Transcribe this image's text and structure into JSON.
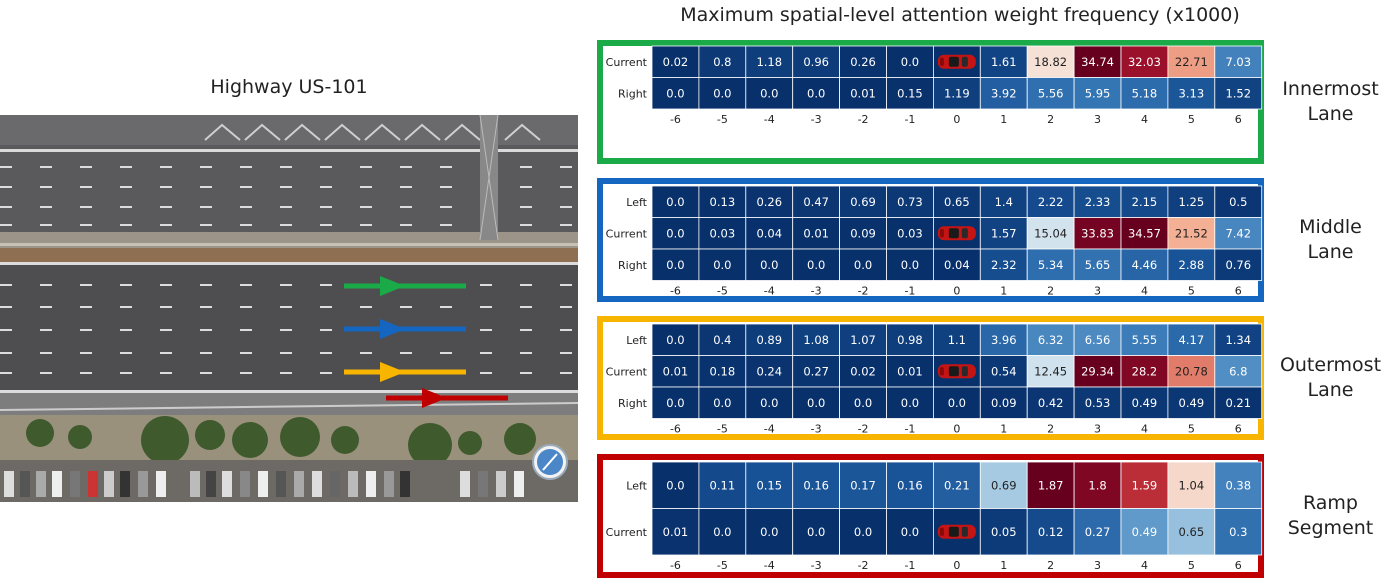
{
  "main_title": "Maximum spatial-level attention weight frequency (x1000)",
  "highway_title": "Highway US-101",
  "colors": {
    "innermost": "#1aaa47",
    "middle": "#1566c0",
    "outermost": "#f7b500",
    "ramp": "#c00000"
  },
  "lane_labels": {
    "innermost": [
      "Innermost",
      "Lane"
    ],
    "middle": [
      "Middle",
      "Lane"
    ],
    "outermost": [
      "Outermost",
      "Lane"
    ],
    "ramp": [
      "Ramp",
      "Segment"
    ]
  },
  "chart_data": [
    {
      "type": "heatmap",
      "panel": "innermost",
      "x_categories": [
        "-6",
        "-5",
        "-4",
        "-3",
        "-2",
        "-1",
        "0",
        "1",
        "2",
        "3",
        "4",
        "5",
        "6"
      ],
      "rows": [
        "Current",
        "Right"
      ],
      "values": [
        [
          0.02,
          0.8,
          1.18,
          0.96,
          0.26,
          0.0,
          null,
          1.61,
          18.82,
          34.74,
          32.03,
          22.71,
          7.03
        ],
        [
          0.0,
          0.0,
          0.0,
          0.0,
          0.01,
          0.15,
          1.19,
          3.92,
          5.56,
          5.95,
          5.18,
          3.13,
          1.52
        ]
      ],
      "labels": [
        [
          "0.02",
          "0.8",
          "1.18",
          "0.96",
          "0.26",
          "0.0",
          "",
          "1.61",
          "18.82",
          "34.74",
          "32.03",
          "22.71",
          "7.03"
        ],
        [
          "0.0",
          "0.0",
          "0.0",
          "0.0",
          "0.01",
          "0.15",
          "1.19",
          "3.92",
          "5.56",
          "5.95",
          "5.18",
          "3.13",
          "1.52"
        ]
      ],
      "vmax": 34.74
    },
    {
      "type": "heatmap",
      "panel": "middle",
      "x_categories": [
        "-6",
        "-5",
        "-4",
        "-3",
        "-2",
        "-1",
        "0",
        "1",
        "2",
        "3",
        "4",
        "5",
        "6"
      ],
      "rows": [
        "Left",
        "Current",
        "Right"
      ],
      "values": [
        [
          0.0,
          0.13,
          0.26,
          0.47,
          0.69,
          0.73,
          0.65,
          1.4,
          2.22,
          2.33,
          2.15,
          1.25,
          0.5
        ],
        [
          0.0,
          0.03,
          0.04,
          0.01,
          0.09,
          0.03,
          null,
          1.57,
          15.04,
          33.83,
          34.57,
          21.52,
          7.42
        ],
        [
          0.0,
          0.0,
          0.0,
          0.0,
          0.0,
          0.0,
          0.04,
          2.32,
          5.34,
          5.65,
          4.46,
          2.88,
          0.76
        ]
      ],
      "labels": [
        [
          "0.0",
          "0.13",
          "0.26",
          "0.47",
          "0.69",
          "0.73",
          "0.65",
          "1.4",
          "2.22",
          "2.33",
          "2.15",
          "1.25",
          "0.5"
        ],
        [
          "0.0",
          "0.03",
          "0.04",
          "0.01",
          "0.09",
          "0.03",
          "",
          "1.57",
          "15.04",
          "33.83",
          "34.57",
          "21.52",
          "7.42"
        ],
        [
          "0.0",
          "0.0",
          "0.0",
          "0.0",
          "0.0",
          "0.0",
          "0.04",
          "2.32",
          "5.34",
          "5.65",
          "4.46",
          "2.88",
          "0.76"
        ]
      ],
      "vmax": 34.57
    },
    {
      "type": "heatmap",
      "panel": "outermost",
      "x_categories": [
        "-6",
        "-5",
        "-4",
        "-3",
        "-2",
        "-1",
        "0",
        "1",
        "2",
        "3",
        "4",
        "5",
        "6"
      ],
      "rows": [
        "Left",
        "Current",
        "Right"
      ],
      "values": [
        [
          0.0,
          0.4,
          0.89,
          1.08,
          1.07,
          0.98,
          1.1,
          3.96,
          6.32,
          6.56,
          5.55,
          4.17,
          1.34
        ],
        [
          0.01,
          0.18,
          0.24,
          0.27,
          0.02,
          0.01,
          null,
          0.54,
          12.45,
          29.34,
          28.2,
          20.78,
          6.8
        ],
        [
          0.0,
          0.0,
          0.0,
          0.0,
          0.0,
          0.0,
          0.0,
          0.09,
          0.42,
          0.53,
          0.49,
          0.49,
          0.21
        ]
      ],
      "labels": [
        [
          "0.0",
          "0.4",
          "0.89",
          "1.08",
          "1.07",
          "0.98",
          "1.1",
          "3.96",
          "6.32",
          "6.56",
          "5.55",
          "4.17",
          "1.34"
        ],
        [
          "0.01",
          "0.18",
          "0.24",
          "0.27",
          "0.02",
          "0.01",
          "",
          "0.54",
          "12.45",
          "29.34",
          "28.2",
          "20.78",
          "6.8"
        ],
        [
          "0.0",
          "0.0",
          "0.0",
          "0.0",
          "0.0",
          "0.0",
          "0.0",
          "0.09",
          "0.42",
          "0.53",
          "0.49",
          "0.49",
          "0.21"
        ]
      ],
      "vmax": 29.34
    },
    {
      "type": "heatmap",
      "panel": "ramp",
      "x_categories": [
        "-6",
        "-5",
        "-4",
        "-3",
        "-2",
        "-1",
        "0",
        "1",
        "2",
        "3",
        "4",
        "5",
        "6"
      ],
      "rows": [
        "Left",
        "Current"
      ],
      "values": [
        [
          0.0,
          0.11,
          0.15,
          0.16,
          0.17,
          0.16,
          0.21,
          0.69,
          1.87,
          1.8,
          1.59,
          1.04,
          0.38
        ],
        [
          0.01,
          0.0,
          0.0,
          0.0,
          0.0,
          0.0,
          null,
          0.05,
          0.12,
          0.27,
          0.49,
          0.65,
          0.3
        ]
      ],
      "labels": [
        [
          "0.0",
          "0.11",
          "0.15",
          "0.16",
          "0.17",
          "0.16",
          "0.21",
          "0.69",
          "1.87",
          "1.8",
          "1.59",
          "1.04",
          "0.38"
        ],
        [
          "0.01",
          "0.0",
          "0.0",
          "0.0",
          "0.0",
          "0.0",
          "",
          "0.05",
          "0.12",
          "0.27",
          "0.49",
          "0.65",
          "0.3"
        ]
      ],
      "vmax": 1.87
    }
  ]
}
